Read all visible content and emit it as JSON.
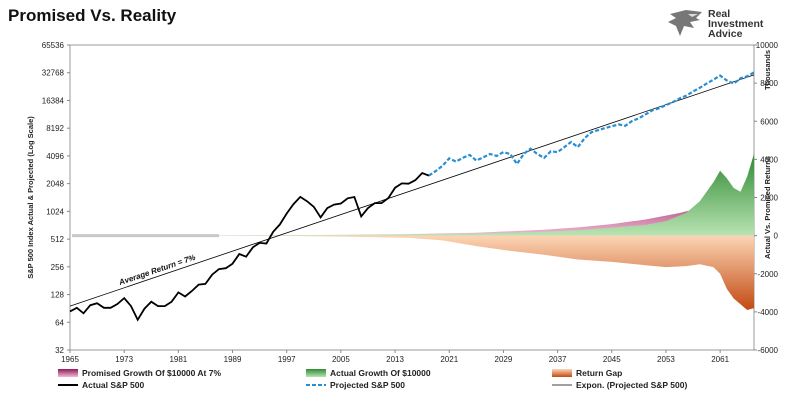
{
  "title": "Promised Vs. Reality",
  "brand": {
    "line1": "Real",
    "line2": "Investment",
    "line3": "Advice"
  },
  "colors": {
    "promised": "#c2237a",
    "actual_growth": "#2e9a35",
    "return_gap": "#ef7a2b",
    "actual_sp500": "#000000",
    "projected_sp500": "#2a8fd0",
    "trend": "#000000"
  },
  "chart_data": {
    "type": "line",
    "title": "Promised Vs. Reality",
    "ylabel": "S&P 500 Index Actual & Projected (Log Scale)",
    "y2label": "Actual Vs. Promised Returns",
    "y2units": "Thousands",
    "y_scale": "log2",
    "ylim": [
      32,
      65536
    ],
    "y2lim": [
      -6000,
      10000
    ],
    "xlim": [
      1965,
      2066
    ],
    "x_ticks": [
      "1965",
      "1973",
      "1981",
      "1989",
      "1997",
      "2005",
      "2013",
      "2021",
      "2029",
      "2037",
      "2045",
      "2053",
      "2061"
    ],
    "y_ticks": [
      "32",
      "64",
      "128",
      "256",
      "512",
      "1024",
      "2048",
      "4096",
      "8192",
      "16384",
      "32768",
      "65536"
    ],
    "y2_ticks": [
      "-6000",
      "-4000",
      "-2000",
      "0",
      "2000",
      "4000",
      "6000",
      "8000",
      "10000"
    ],
    "annotation": "Average Return = 7%",
    "legend": [
      {
        "label": "Promised Growth Of $10000 At 7%",
        "kind": "area",
        "key": "promised"
      },
      {
        "label": "Actual Growth Of $10000",
        "kind": "area",
        "key": "actual_growth"
      },
      {
        "label": "Return Gap",
        "kind": "area",
        "key": "return_gap"
      },
      {
        "label": "Actual S&P 500",
        "kind": "line",
        "key": "actual_sp500"
      },
      {
        "label": "Projected S&P 500",
        "kind": "dash",
        "key": "projected_sp500"
      },
      {
        "label": "Expon. (Projected S&P 500)",
        "kind": "thin",
        "key": "trend"
      }
    ],
    "series": [
      {
        "name": "Actual S&P 500",
        "x": [
          1965,
          1966,
          1967,
          1968,
          1969,
          1970,
          1971,
          1972,
          1973,
          1974,
          1975,
          1976,
          1977,
          1978,
          1979,
          1980,
          1981,
          1982,
          1983,
          1984,
          1985,
          1986,
          1987,
          1988,
          1989,
          1990,
          1991,
          1992,
          1993,
          1994,
          1995,
          1996,
          1997,
          1998,
          1999,
          2000,
          2001,
          2002,
          2003,
          2004,
          2005,
          2006,
          2007,
          2008,
          2009,
          2010,
          2011,
          2012,
          2013,
          2014,
          2015,
          2016,
          2017,
          2018
        ],
        "values": [
          84,
          92,
          80,
          98,
          103,
          92,
          92,
          101,
          117,
          96,
          68,
          90,
          107,
          96,
          96,
          107,
          135,
          122,
          140,
          164,
          167,
          211,
          242,
          247,
          277,
          353,
          330,
          417,
          466,
          459,
          615,
          740,
          970,
          1229,
          1469,
          1320,
          1148,
          880,
          1112,
          1212,
          1248,
          1418,
          1468,
          903,
          1115,
          1258,
          1258,
          1426,
          1848,
          2059,
          2044,
          2239,
          2674,
          2506
        ]
      },
      {
        "name": "Projected S&P 500",
        "x": [
          2018,
          2019,
          2020,
          2021,
          2022,
          2023,
          2024,
          2025,
          2026,
          2027,
          2028,
          2029,
          2030,
          2031,
          2032,
          2033,
          2034,
          2035,
          2036,
          2037,
          2038,
          2039,
          2040,
          2041,
          2042,
          2043,
          2044,
          2045,
          2046,
          2047,
          2048,
          2049,
          2050,
          2051,
          2052,
          2053,
          2054,
          2055,
          2056,
          2057,
          2058,
          2059,
          2060,
          2061,
          2062,
          2063,
          2064,
          2065,
          2066
        ],
        "values": [
          2506,
          2800,
          3200,
          3850,
          3550,
          3900,
          4200,
          3650,
          3950,
          4300,
          4100,
          4500,
          4300,
          3350,
          4300,
          4900,
          4300,
          3900,
          4600,
          4500,
          5100,
          5800,
          5100,
          6400,
          7400,
          7800,
          8200,
          8600,
          9000,
          8700,
          9800,
          10500,
          11600,
          12800,
          13500,
          14600,
          15700,
          17200,
          18500,
          20500,
          22500,
          25000,
          27500,
          30500,
          27000,
          25000,
          28500,
          30000,
          33000
        ]
      },
      {
        "name": "Expon. (Projected S&P 500)",
        "x": [
          1965,
          2066
        ],
        "values": [
          96,
          31000
        ]
      },
      {
        "name": "Promised Growth Of $10000 At 7%",
        "x": [
          1987,
          1995,
          2005,
          2015,
          2025,
          2035,
          2040,
          2045,
          2050,
          2055,
          2058,
          2061,
          2063,
          2066
        ],
        "values": [
          10,
          20,
          40,
          79,
          156,
          307,
          430,
          603,
          846,
          1187,
          1454,
          1781,
          2040,
          2499
        ],
        "axis": "y2",
        "units": "thousands"
      },
      {
        "name": "Actual Growth Of $10000",
        "x": [
          1987,
          1995,
          2005,
          2015,
          2025,
          2035,
          2040,
          2045,
          2050,
          2053,
          2056,
          2058,
          2060,
          2061,
          2062,
          2063,
          2064,
          2065,
          2066
        ],
        "values": [
          10,
          20,
          38,
          60,
          105,
          205,
          290,
          420,
          560,
          760,
          1200,
          1800,
          2800,
          3400,
          3000,
          2500,
          2300,
          3100,
          4300
        ],
        "axis": "y2",
        "units": "thousands"
      },
      {
        "name": "Return Gap",
        "x": [
          1987,
          1995,
          2005,
          2015,
          2020,
          2025,
          2030,
          2035,
          2040,
          2045,
          2050,
          2053,
          2056,
          2058,
          2060,
          2061,
          2062,
          2063,
          2064,
          2065,
          2066
        ],
        "values": [
          0,
          -10,
          -50,
          -120,
          -250,
          -550,
          -800,
          -1000,
          -1250,
          -1380,
          -1550,
          -1650,
          -1600,
          -1500,
          -1650,
          -2000,
          -2800,
          -3300,
          -3600,
          -3900,
          -3800
        ],
        "axis": "y2",
        "units": "thousands"
      }
    ]
  }
}
